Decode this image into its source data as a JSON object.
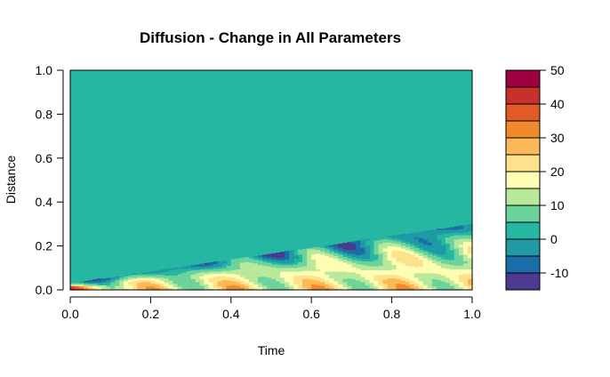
{
  "chart_data": {
    "type": "heatmap",
    "title": "Diffusion - Change in All Parameters",
    "xlabel": "Time",
    "ylabel": "Distance",
    "xlim": [
      0,
      1
    ],
    "ylim": [
      0,
      1
    ],
    "x_ticks": [
      "0.0",
      "0.2",
      "0.4",
      "0.6",
      "0.8",
      "1.0"
    ],
    "y_ticks": [
      "0.0",
      "0.2",
      "0.4",
      "0.6",
      "0.8",
      "1.0"
    ],
    "legend": {
      "placement": "right",
      "range": [
        -15,
        50
      ],
      "step": 5,
      "tick_labels": [
        "50",
        "40",
        "30",
        "20",
        "10",
        "0",
        "-10"
      ],
      "colors": [
        "#4b3a8f",
        "#1b6fa8",
        "#1f9aa6",
        "#26b7a3",
        "#6dd39d",
        "#b8e99a",
        "#fdfdb4",
        "#fee18c",
        "#fdb857",
        "#f08a2c",
        "#e25a26",
        "#c9302c",
        "#9e0142"
      ]
    },
    "background_value": 0,
    "field_description_bands": [
      {
        "x": [
          0.0,
          1.0
        ],
        "front_distance": [
          0.03,
          0.3
        ],
        "note": "front spreads linearly with time"
      }
    ]
  }
}
